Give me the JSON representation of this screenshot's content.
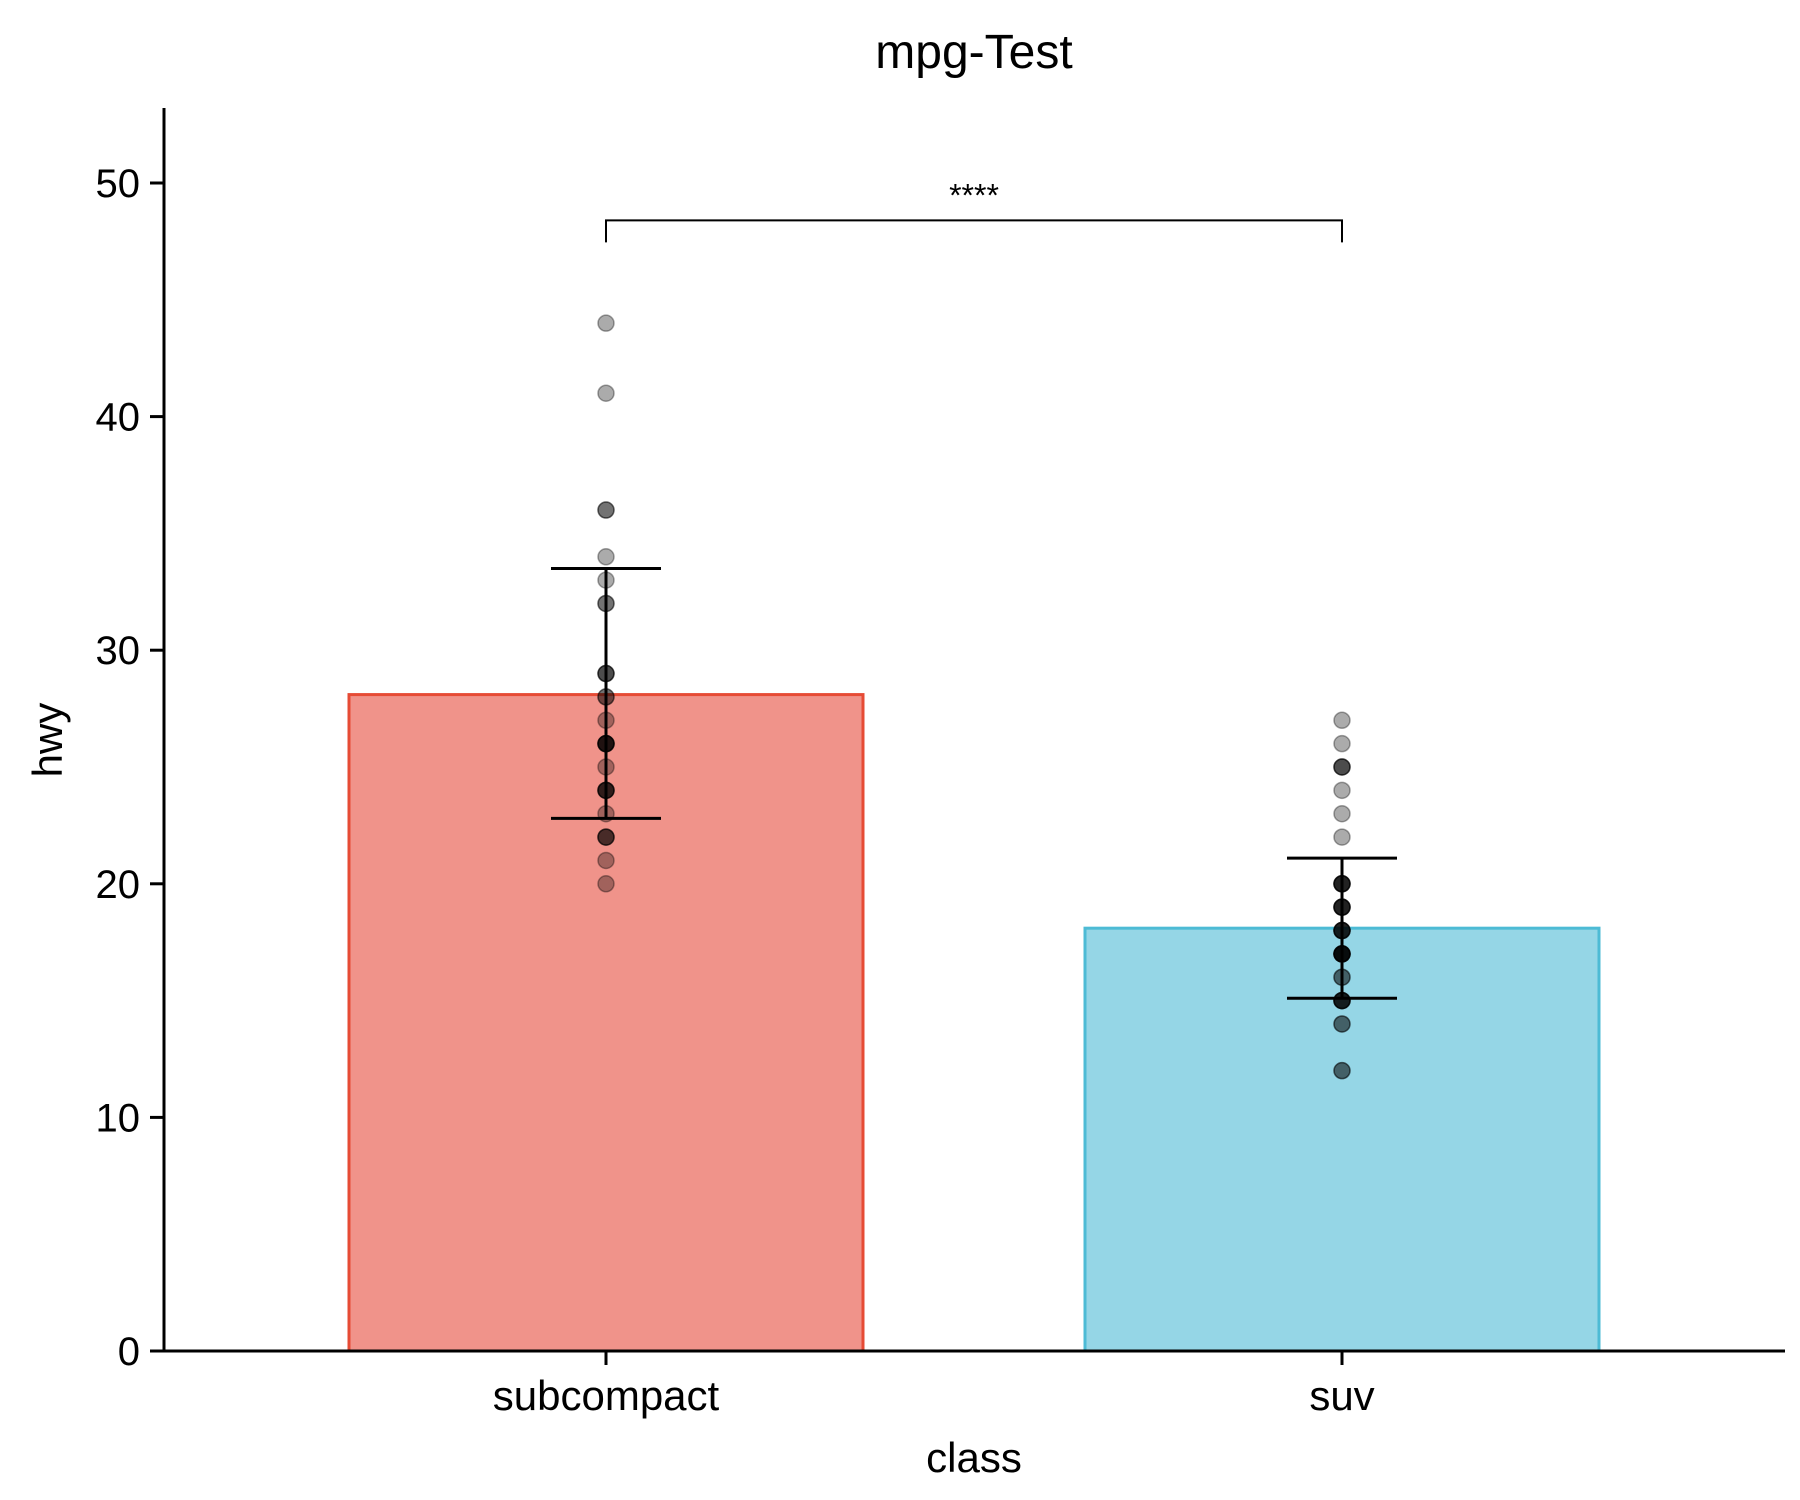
{
  "chart_data": {
    "type": "bar",
    "title": "mpg-Test",
    "xlabel": "class",
    "ylabel": "hwy",
    "ylim": [
      0,
      53.2
    ],
    "yticks": [
      0,
      10,
      20,
      30,
      40,
      50
    ],
    "ytick_labels": [
      "0",
      "10",
      "20",
      "30",
      "40",
      "50"
    ],
    "categories": [
      "subcompact",
      "suv"
    ],
    "values": [
      28.1,
      18.1
    ],
    "error_bars": [
      {
        "lower": 22.8,
        "upper": 33.5
      },
      {
        "lower": 15.1,
        "upper": 21.1
      }
    ],
    "colors": {
      "fill": [
        "#F0938A",
        "#95D6E6"
      ],
      "stroke": [
        "#E64B35",
        "#4DBBD5"
      ],
      "points": "#000000"
    },
    "points": [
      [
        20,
        21,
        22,
        22,
        22,
        23,
        24,
        24,
        24,
        24,
        25,
        26,
        26,
        26,
        26,
        26,
        27,
        28,
        28,
        29,
        29,
        29,
        32,
        32,
        33,
        34,
        36,
        36,
        41,
        44
      ],
      [
        12,
        12,
        14,
        14,
        15,
        15,
        15,
        15,
        15,
        16,
        16,
        17,
        17,
        17,
        17,
        17,
        17,
        17,
        18,
        18,
        18,
        18,
        18,
        19,
        19,
        19,
        19,
        19,
        20,
        20,
        20,
        20,
        20,
        22,
        23,
        24,
        25,
        25,
        25,
        26,
        27
      ]
    ],
    "significance": {
      "from": "subcompact",
      "to": "suv",
      "label": "****",
      "y": 48.4
    },
    "grid": false,
    "legend": "none"
  }
}
